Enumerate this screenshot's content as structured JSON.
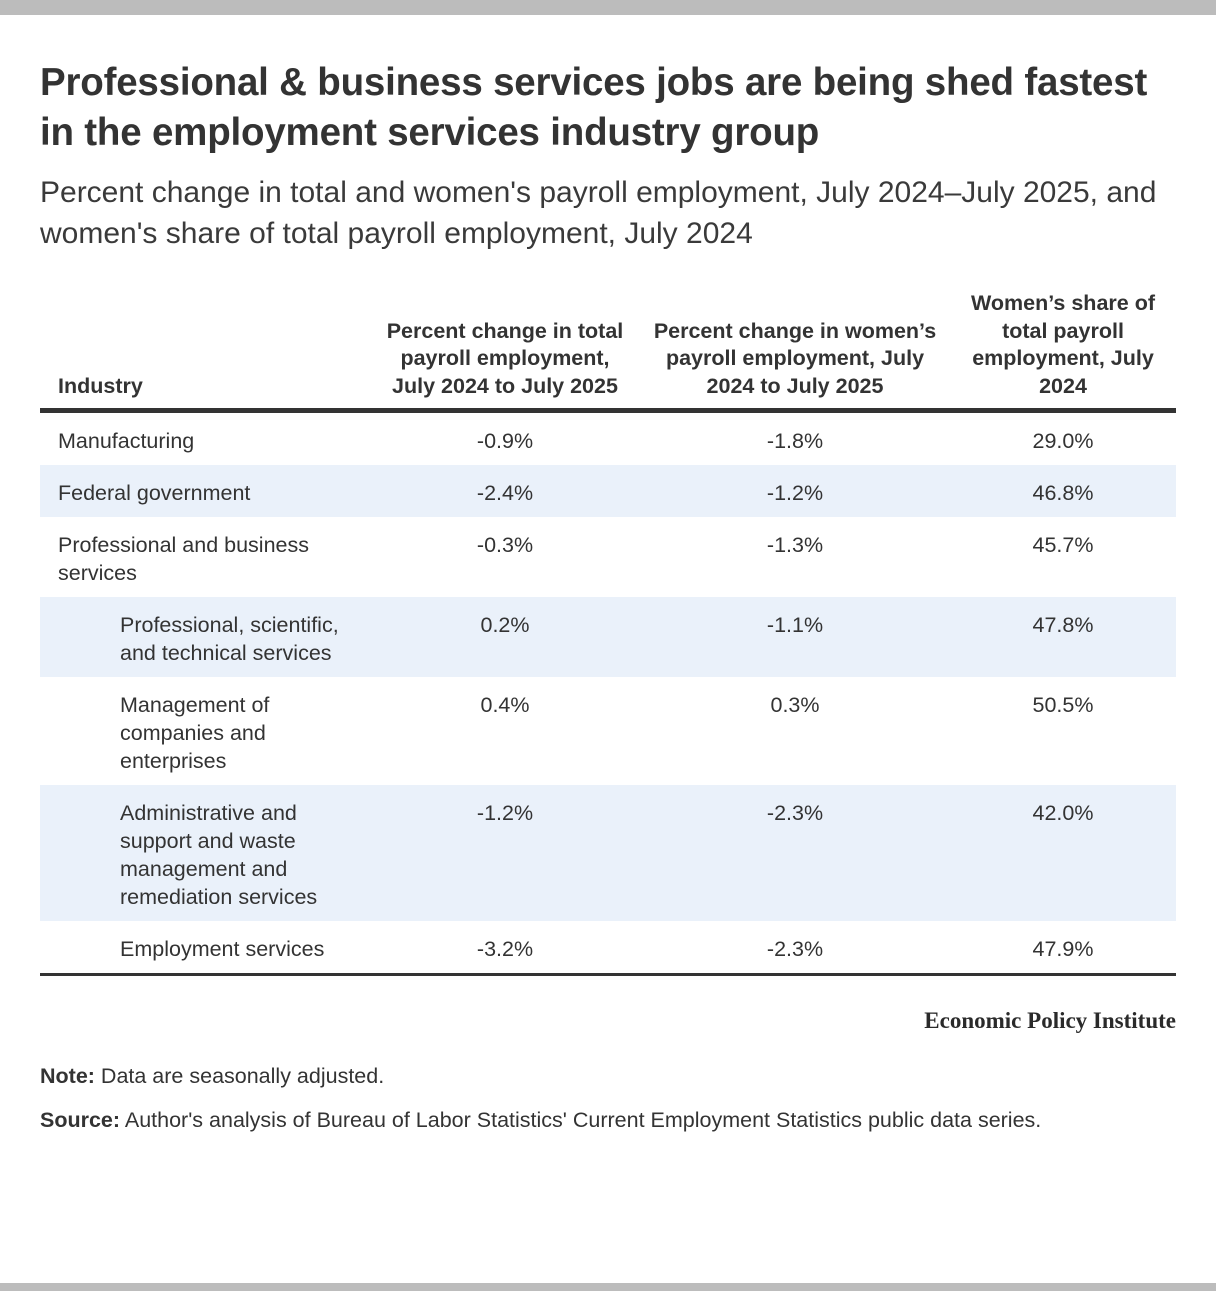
{
  "chart_data": {
    "type": "table",
    "title": "Professional & business services jobs are being shed fastest in the employment services industry group",
    "subtitle": "Percent change in total and women's payroll employment, July 2024–July 2025, and women's share of total payroll employment, July 2024",
    "columns": [
      "Industry",
      "Percent change in total payroll employment, July 2024 to July 2025",
      "Percent change in women’s payroll employment, July 2024 to July 2025",
      "Women’s share of total payroll employment, July 2024"
    ],
    "rows": [
      {
        "industry": "Manufacturing",
        "total_change": "-0.9%",
        "women_change": "-1.8%",
        "women_share": "29.0%",
        "level": 0
      },
      {
        "industry": "Federal government",
        "total_change": "-2.4%",
        "women_change": "-1.2%",
        "women_share": "46.8%",
        "level": 0
      },
      {
        "industry": "Professional and business services",
        "total_change": "-0.3%",
        "women_change": "-1.3%",
        "women_share": "45.7%",
        "level": 0
      },
      {
        "industry": "Professional, scientific, and technical services",
        "total_change": "0.2%",
        "women_change": "-1.1%",
        "women_share": "47.8%",
        "level": 1
      },
      {
        "industry": "Management of companies and enterprises",
        "total_change": "0.4%",
        "women_change": "0.3%",
        "women_share": "50.5%",
        "level": 1
      },
      {
        "industry": "Administrative and support and waste management and remediation services",
        "total_change": "-1.2%",
        "women_change": "-2.3%",
        "women_share": "42.0%",
        "level": 1
      },
      {
        "industry": "Employment services",
        "total_change": "-3.2%",
        "women_change": "-2.3%",
        "women_share": "47.9%",
        "level": 1
      }
    ]
  },
  "branding": "Economic Policy Institute",
  "note": {
    "label": "Note:",
    "text": "Data are seasonally adjusted."
  },
  "source": {
    "label": "Source:",
    "text": "Author's analysis of Bureau of Labor Statistics' Current Employment Statistics public data series."
  }
}
